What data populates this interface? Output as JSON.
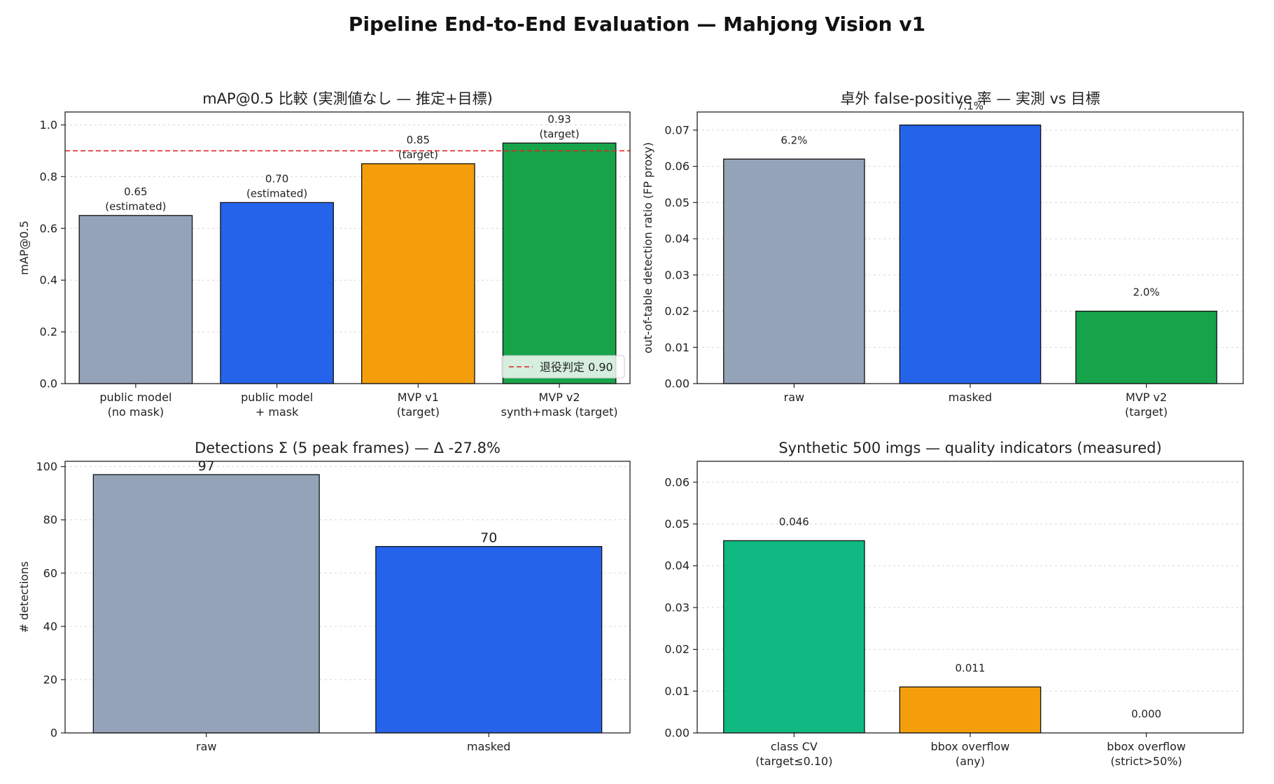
{
  "suptitle": "Pipeline End-to-End Evaluation — Mahjong Vision v1",
  "chart_data": [
    {
      "id": "map",
      "type": "bar",
      "title": "mAP@0.5 比較 (実測値なし — 推定+目標)",
      "xlabel": "",
      "ylabel": "mAP@0.5",
      "ylim": [
        0,
        1.05
      ],
      "yticks": [
        0,
        0.2,
        0.4,
        0.6,
        0.8,
        1.0
      ],
      "ytick_labels": [
        "0.0",
        "0.2",
        "0.4",
        "0.6",
        "0.8",
        "1.0"
      ],
      "grid": "y-dotted",
      "categories": [
        "public model\n(no mask)",
        "public model\n+ mask",
        "MVP v1\n(target)",
        "MVP v2\nsynth+mask (target)"
      ],
      "values": [
        0.65,
        0.7,
        0.85,
        0.93
      ],
      "value_labels": [
        "0.65\n(estimated)",
        "0.70\n(estimated)",
        "0.85\n(target)",
        "0.93\n(target)"
      ],
      "colors": [
        "#94a3b8",
        "#2563eb",
        "#f59e0b",
        "#16a34a"
      ],
      "hline": {
        "value": 0.9,
        "color": "#dc2626",
        "label": "退役判定 0.90"
      },
      "legend_placement": "lower-right"
    },
    {
      "id": "fp",
      "type": "bar",
      "title": "卓外 false-positive 率 — 実測 vs 目標",
      "xlabel": "",
      "ylabel": "out-of-table detection ratio (FP proxy)",
      "ylim": [
        0,
        0.075
      ],
      "yticks": [
        0,
        0.01,
        0.02,
        0.03,
        0.04,
        0.05,
        0.06,
        0.07
      ],
      "ytick_labels": [
        "0.00",
        "0.01",
        "0.02",
        "0.03",
        "0.04",
        "0.05",
        "0.06",
        "0.07"
      ],
      "grid": "y-dotted",
      "categories": [
        "raw",
        "masked",
        "MVP v2\n(target)"
      ],
      "values": [
        0.062,
        0.0714,
        0.02
      ],
      "value_labels": [
        "6.2%",
        "7.1%",
        "2.0%"
      ],
      "colors": [
        "#94a3b8",
        "#2563eb",
        "#16a34a"
      ]
    },
    {
      "id": "det",
      "type": "bar",
      "title": "Detections Σ (5 peak frames) — Δ -27.8%",
      "xlabel": "",
      "ylabel": "# detections",
      "ylim": [
        0,
        102
      ],
      "yticks": [
        0,
        20,
        40,
        60,
        80,
        100
      ],
      "ytick_labels": [
        "0",
        "20",
        "40",
        "60",
        "80",
        "100"
      ],
      "grid": "y-dotted",
      "categories": [
        "raw",
        "masked"
      ],
      "values": [
        97,
        70
      ],
      "value_labels": [
        "97",
        "70"
      ],
      "colors": [
        "#94a3b8",
        "#2563eb"
      ]
    },
    {
      "id": "syn",
      "type": "bar",
      "title": "Synthetic 500 imgs — quality indicators (measured)",
      "xlabel": "",
      "ylabel": "",
      "ylim": [
        0,
        0.065
      ],
      "yticks": [
        0,
        0.01,
        0.02,
        0.03,
        0.04,
        0.05,
        0.06
      ],
      "ytick_labels": [
        "0.00",
        "0.01",
        "0.02",
        "0.03",
        "0.04",
        "0.05",
        "0.06"
      ],
      "grid": "y-dotted",
      "categories": [
        "class CV\n(target≤0.10)",
        "bbox overflow\n(any)",
        "bbox overflow\n(strict>50%)"
      ],
      "values": [
        0.046,
        0.011,
        0.0
      ],
      "value_labels": [
        "0.046",
        "0.011",
        "0.000"
      ],
      "colors": [
        "#10b981",
        "#f59e0b",
        "#dc2626"
      ]
    }
  ]
}
